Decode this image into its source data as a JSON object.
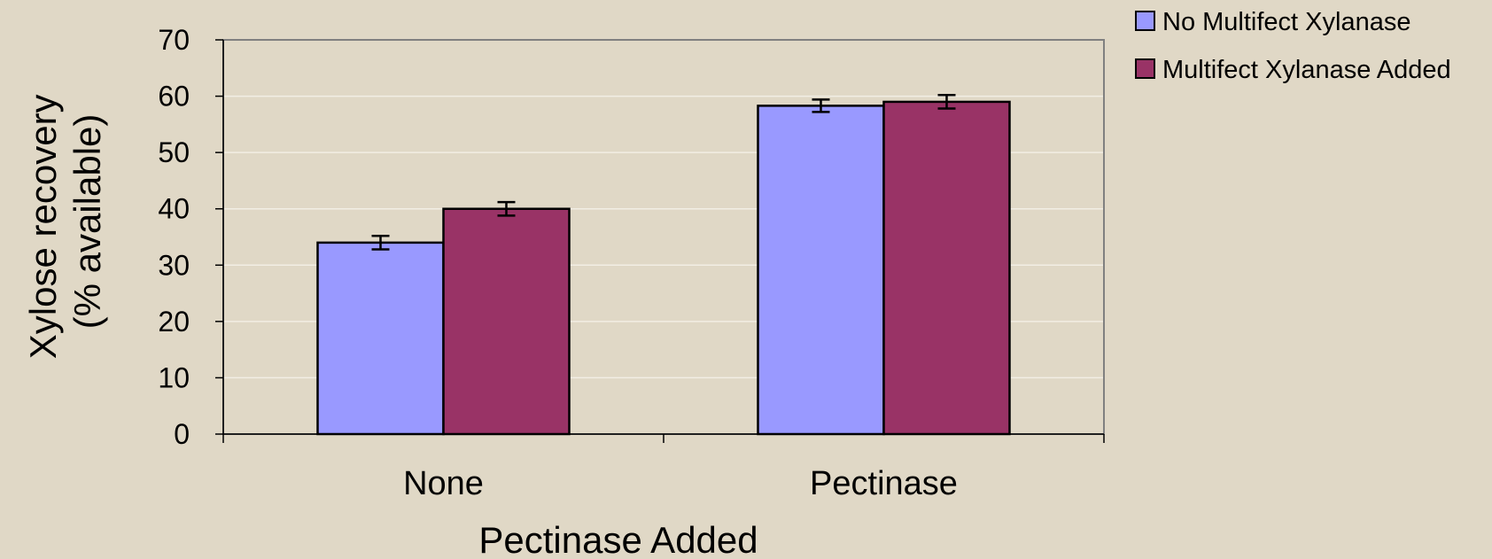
{
  "chart_data": {
    "type": "bar",
    "title": "",
    "xlabel": "Pectinase Added",
    "ylabel_lines": [
      "Xylose recovery",
      "(% available)"
    ],
    "categories": [
      "None",
      "Pectinase"
    ],
    "series": [
      {
        "name": "No Multifect Xylanase",
        "color": "#9999ff",
        "values": [
          34,
          58.3
        ],
        "error": [
          1.2,
          1.1
        ]
      },
      {
        "name": "Multifect Xylanase Added",
        "color": "#993366",
        "values": [
          40,
          59
        ],
        "error": [
          1.2,
          1.2
        ]
      }
    ],
    "ylim": [
      0,
      70
    ],
    "yticks": [
      0,
      10,
      20,
      30,
      40,
      50,
      60,
      70
    ],
    "grid": true,
    "legend_position": "top-right"
  }
}
